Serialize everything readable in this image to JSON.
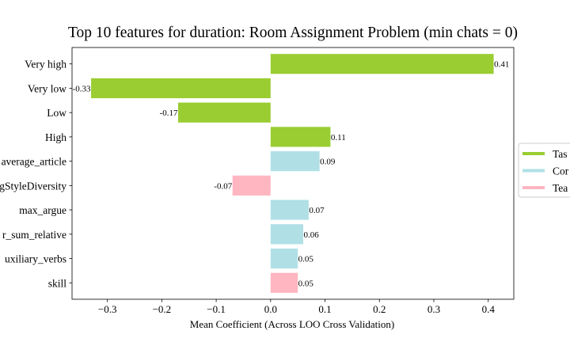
{
  "chart_data": {
    "type": "bar",
    "orientation": "horizontal",
    "title": "Top 10 features for duration: Room Assignment Problem (min chats = 0)",
    "xlabel": "Mean Coefficient (Across LOO Cross Validation)",
    "ylabel": "",
    "xlim": [
      -0.365,
      0.447
    ],
    "xticks": [
      "−0.3",
      "−0.2",
      "−0.1",
      "0.0",
      "0.1",
      "0.2",
      "0.3",
      "0.4"
    ],
    "xtick_values": [
      -0.3,
      -0.2,
      -0.1,
      0.0,
      0.1,
      0.2,
      0.3,
      0.4
    ],
    "grid": false,
    "legend_position": "right",
    "categories": [
      "Very high",
      "Very low",
      "Low",
      "High",
      "average_article",
      "gStyleDiversity",
      "max_argue",
      "r_sum_relative",
      "uxiliary_verbs",
      "skill"
    ],
    "values": [
      0.41,
      -0.33,
      -0.17,
      0.11,
      0.09,
      -0.07,
      0.07,
      0.06,
      0.05,
      0.05
    ],
    "value_labels": [
      "0.41",
      "-0.33",
      "-0.17",
      "0.11",
      "0.09",
      "-0.07",
      "0.07",
      "0.06",
      "0.05",
      "0.05"
    ],
    "bar_groups": [
      0,
      0,
      0,
      0,
      1,
      2,
      1,
      1,
      1,
      2
    ],
    "legend": [
      {
        "label": "Tas",
        "color": "#9acd32"
      },
      {
        "label": "Cor",
        "color": "#b0e0e6"
      },
      {
        "label": "Tea",
        "color": "#ffb6c1"
      }
    ]
  }
}
